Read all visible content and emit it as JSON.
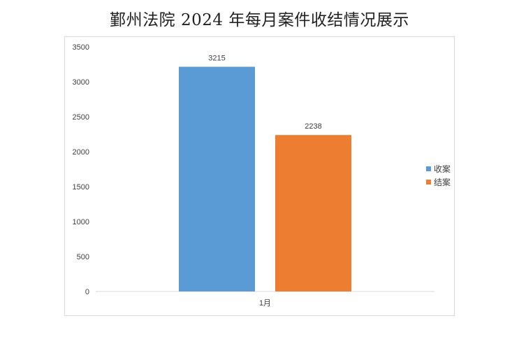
{
  "chart_data": {
    "type": "bar",
    "title": "鄞州法院 2024 年每月案件收结情况展示",
    "categories": [
      "1月"
    ],
    "series": [
      {
        "name": "收案",
        "values": [
          3215
        ],
        "color": "#5b9bd5"
      },
      {
        "name": "结案",
        "values": [
          2238
        ],
        "color": "#ed7d31"
      }
    ],
    "ylim": [
      0,
      3500
    ],
    "yticks": [
      0,
      500,
      1000,
      1500,
      2000,
      2500,
      3000,
      3500
    ],
    "xlabel": "",
    "ylabel": "",
    "grid": false,
    "legend": "right",
    "data_labels": true
  }
}
